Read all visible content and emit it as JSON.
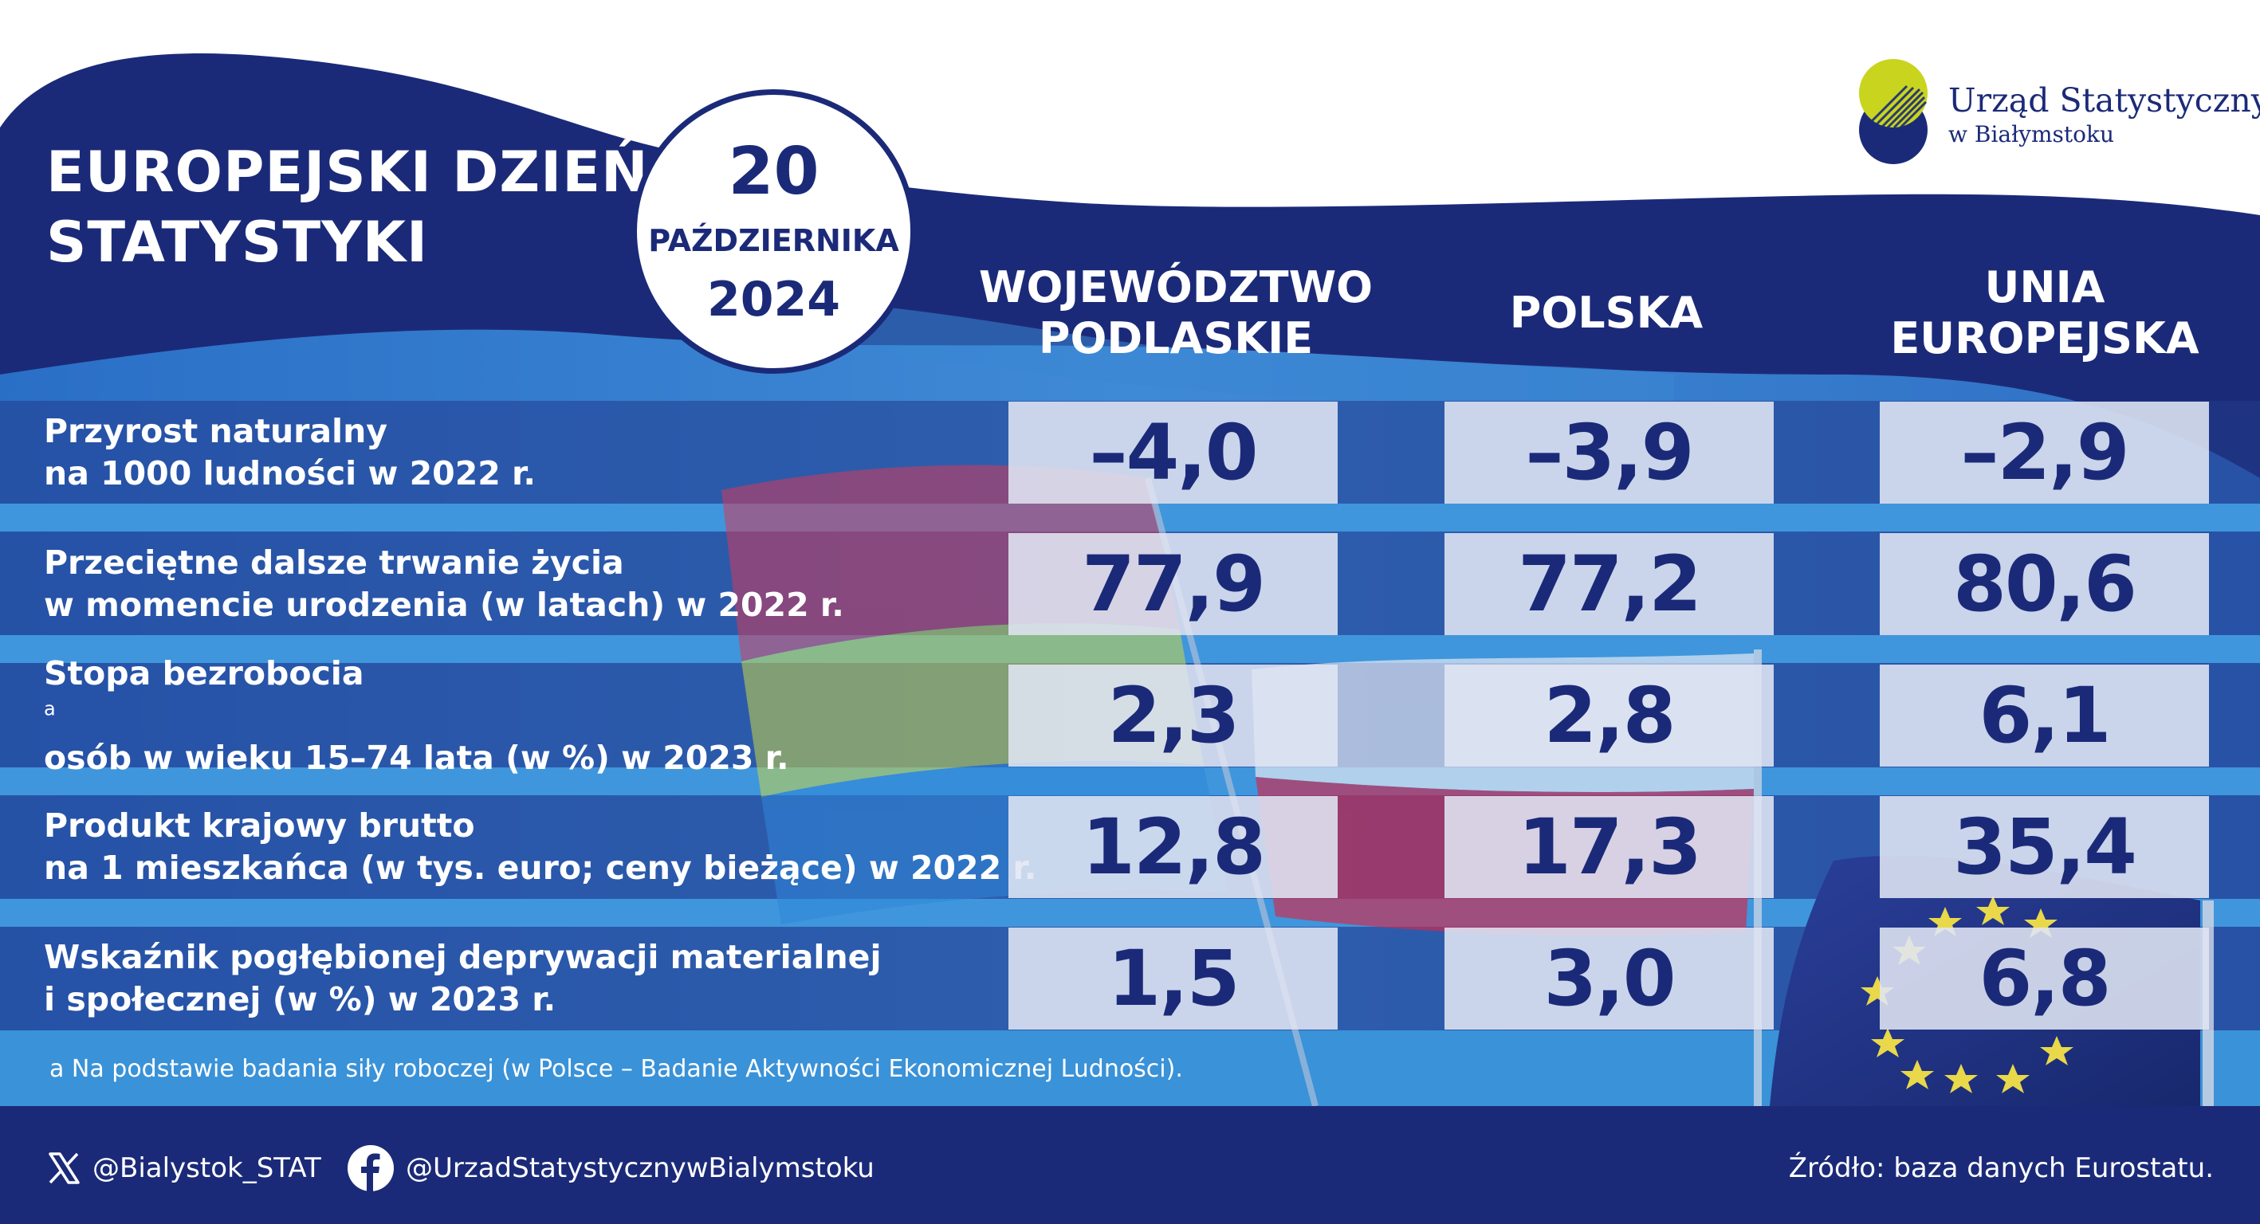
{
  "title": {
    "line1": "EUROPEJSKI DZIEŃ",
    "line2": "STATYSTYKI"
  },
  "date": {
    "day": "20",
    "month": "PAŹDZIERNIKA",
    "year": "2024"
  },
  "logo": {
    "name": "Urząd Statystyczny",
    "subtitle": "w Białymstoku"
  },
  "columns": [
    {
      "line1": "WOJEWÓDZTWO",
      "line2": "PODLASKIE"
    },
    {
      "line1": "POLSKA",
      "line2": ""
    },
    {
      "line1": "UNIA",
      "line2": "EUROPEJSKA"
    }
  ],
  "rows": [
    {
      "label_line1": "Przyrost naturalny",
      "label_sup": "",
      "label_line2": "na 1000 ludności w 2022 r.",
      "values": [
        "–4,0",
        "–3,9",
        "–2,9"
      ]
    },
    {
      "label_line1": "Przeciętne dalsze trwanie życia",
      "label_sup": "",
      "label_line2": "w momencie urodzenia (w latach) w 2022 r.",
      "values": [
        "77,9",
        "77,2",
        "80,6"
      ]
    },
    {
      "label_line1": "Stopa bezrobocia",
      "label_sup": "a",
      "label_line2": "osób w wieku 15–74 lata (w %) w 2023 r.",
      "values": [
        "2,3",
        "2,8",
        "6,1"
      ]
    },
    {
      "label_line1": "Produkt krajowy brutto",
      "label_sup": "",
      "label_line2": "na 1 mieszkańca (w tys. euro; ceny bieżące) w 2022 r.",
      "values": [
        "12,8",
        "17,3",
        "35,4"
      ]
    },
    {
      "label_line1": "Wskaźnik pogłębionej deprywacji materialnej",
      "label_sup": "",
      "label_line2": "i społecznej (w %) w 2023 r.",
      "values": [
        "1,5",
        "3,0",
        "6,8"
      ]
    }
  ],
  "footnote": "a Na podstawie badania siły roboczej (w Polsce – Badanie Aktywności Ekonomicznej Ludności).",
  "footer": {
    "twitter": "@Bialystok_STAT",
    "facebook": "@UrzadStatystycznywBialymstoku",
    "source": "Źródło: baza danych Eurostatu."
  },
  "icons": {
    "twitter": "x-logo-icon",
    "facebook": "facebook-logo-icon",
    "logo_mark": "statistics-office-logo-icon"
  },
  "colors": {
    "navy": "#1b2a78",
    "mid_blue": "#3f7bd0",
    "light_blue": "#4aa3e0",
    "cell_bg": "#e0e6f4",
    "logo_lime": "#c9d41e"
  }
}
